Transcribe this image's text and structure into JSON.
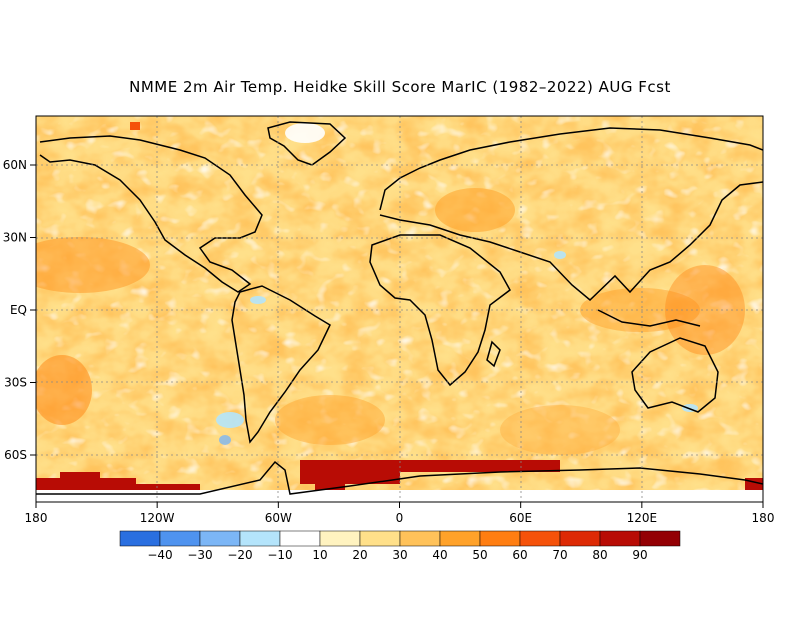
{
  "title": "NMME 2m Air Temp. Heidke Skill Score MarIC (1982–2022) AUG Fcst",
  "axes": {
    "x_ticks": [
      "180",
      "120W",
      "60W",
      "0",
      "60E",
      "120E",
      "180"
    ],
    "y_ticks": [
      "60N",
      "30N",
      "EQ",
      "30S",
      "60S"
    ]
  },
  "colorbar": {
    "colors": [
      "#2a6fe0",
      "#4f93ef",
      "#7cb6f6",
      "#b4e4fb",
      "#ffffff",
      "#fff3c0",
      "#ffe08a",
      "#ffc25a",
      "#ffa22a",
      "#ff7e12",
      "#f5520a",
      "#dd2a05",
      "#b80c05",
      "#930004"
    ],
    "labels": [
      "−40",
      "−30",
      "−20",
      "−10",
      "10",
      "20",
      "30",
      "40",
      "50",
      "60",
      "70",
      "80",
      "90"
    ]
  }
}
